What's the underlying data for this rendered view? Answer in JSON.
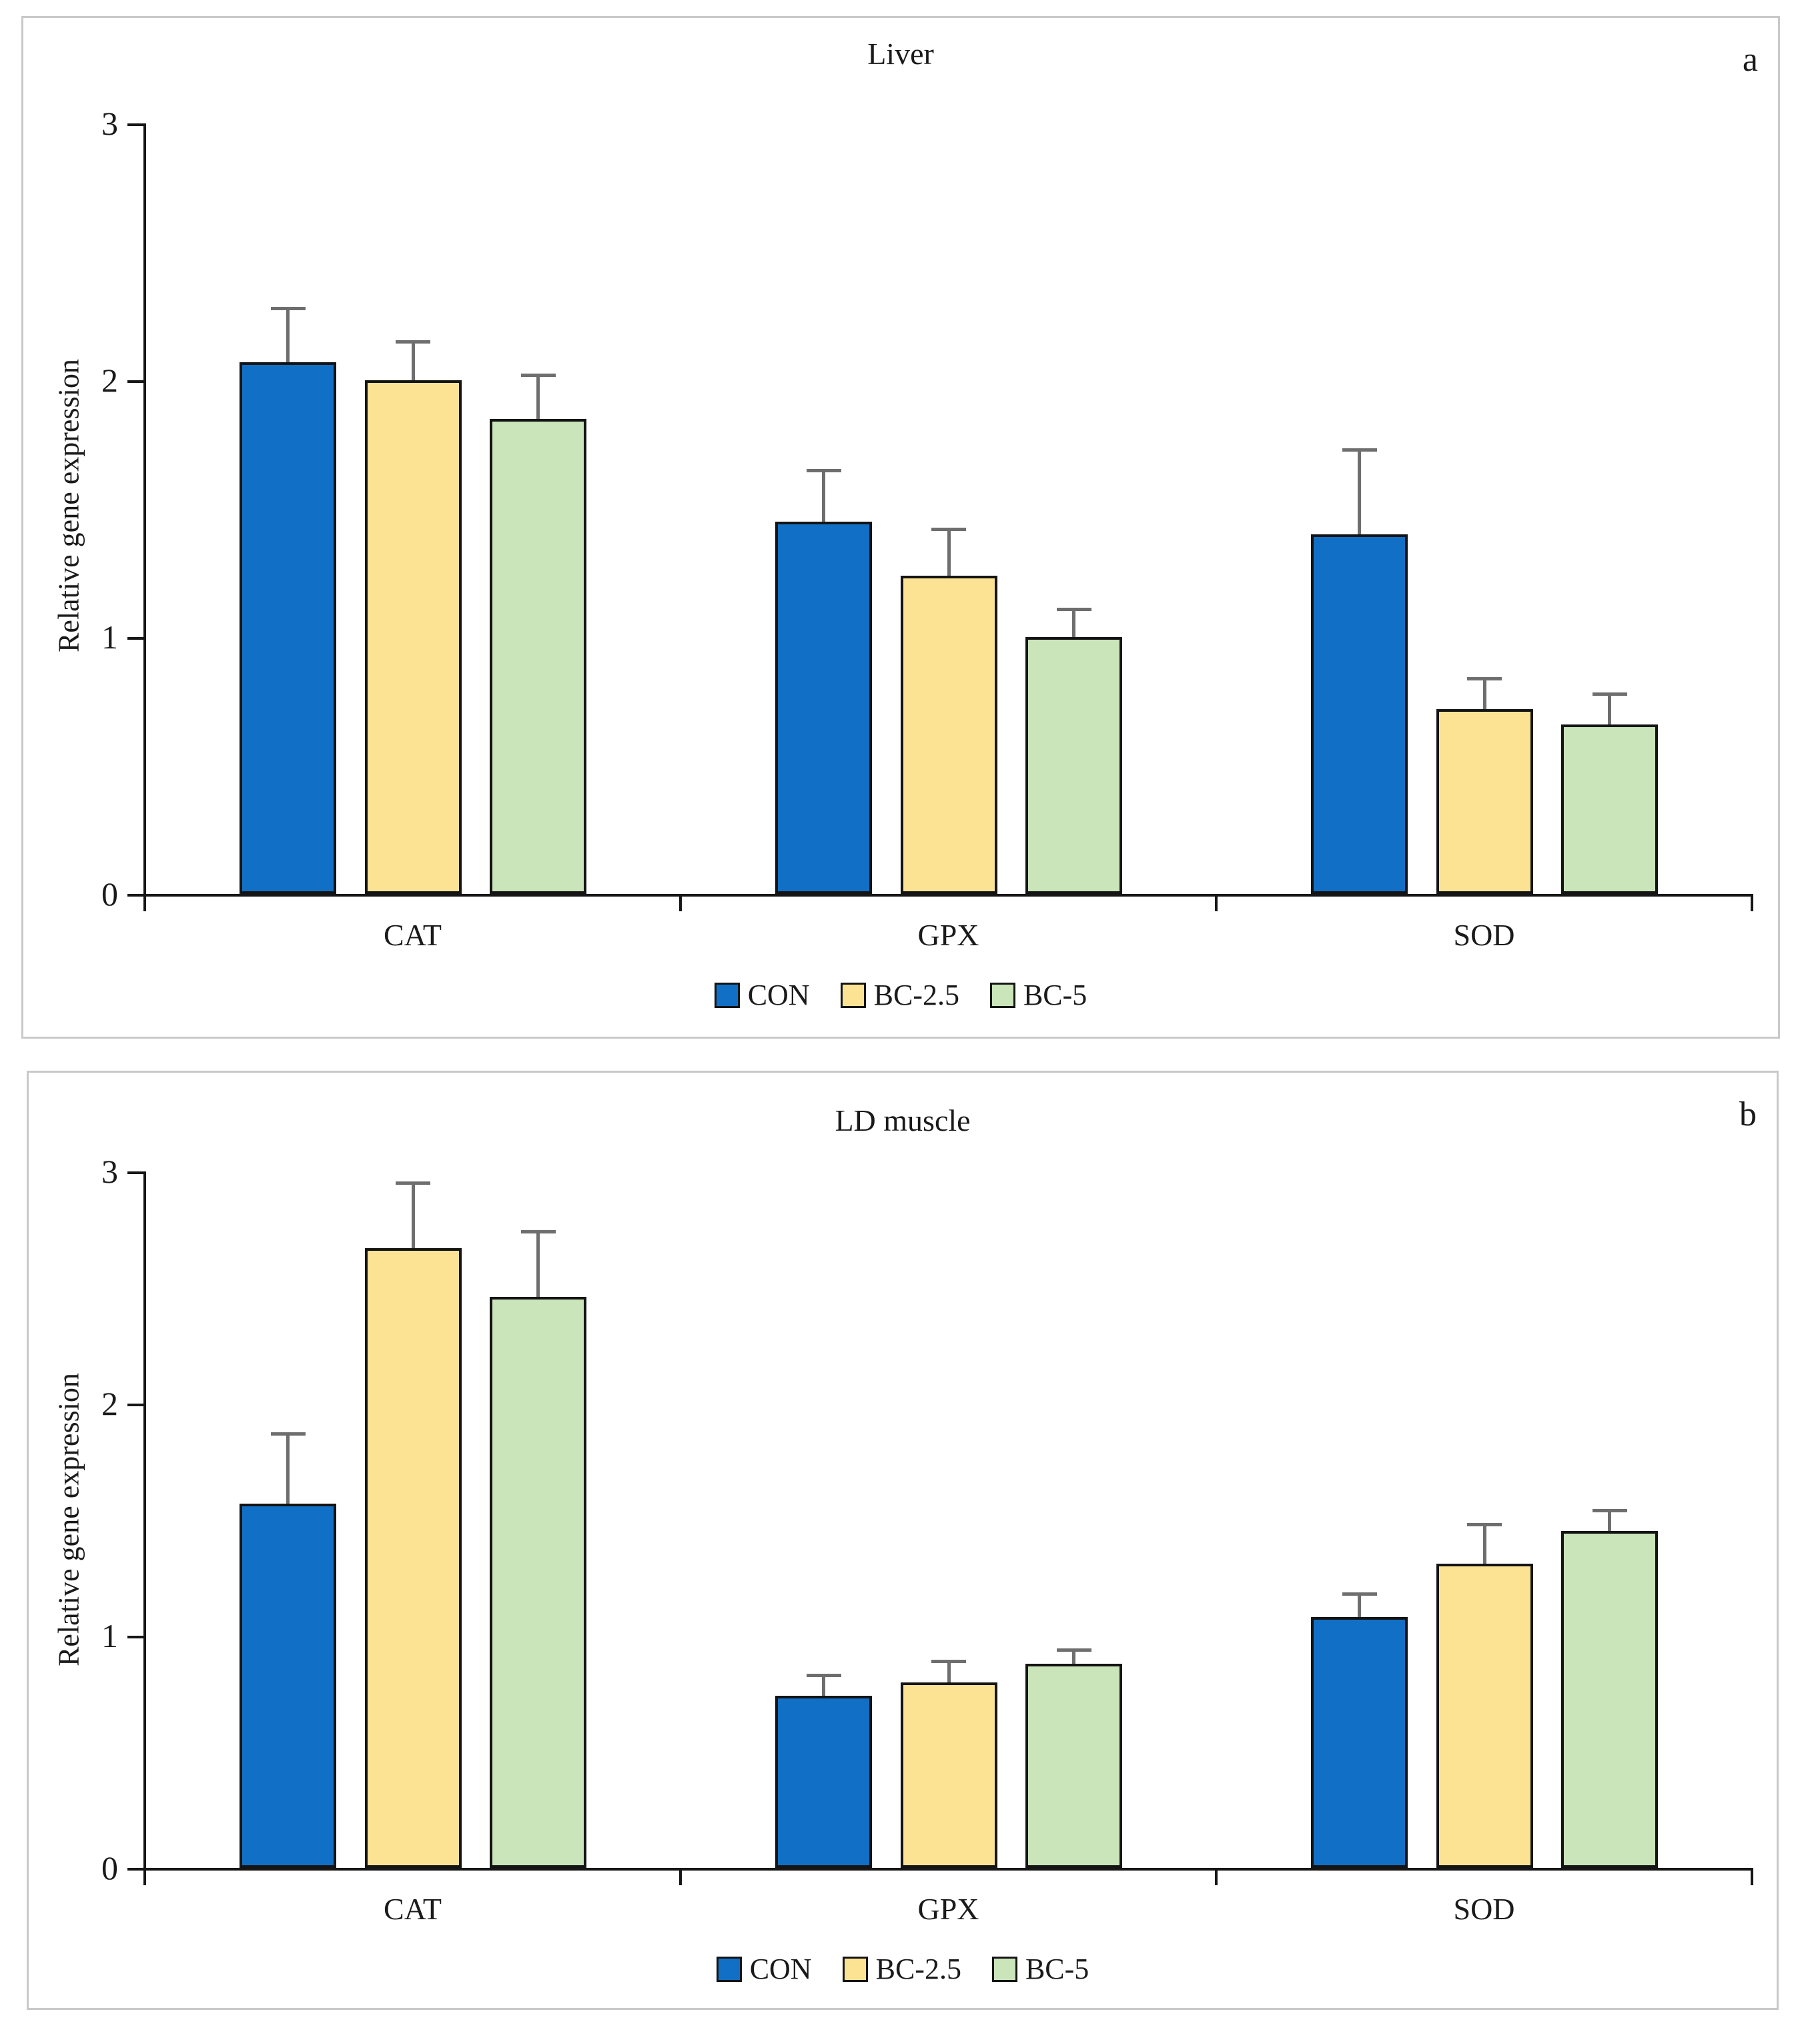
{
  "styles": {
    "series_colors": {
      "CON": "#1170c6",
      "BC-2.5": "#fce394",
      "BC-5": "#cae5ba"
    },
    "bar_border_color": "#141414",
    "error_bar_color": "#6e6e6e",
    "axis_color": "#161616",
    "panel_border_color": "#c9c9c9",
    "text_color": "#1a1a1a"
  },
  "chart_data": [
    {
      "type": "bar",
      "panel_label": "a",
      "title": "Liver",
      "xlabel": "",
      "ylabel": "Relative gene expression",
      "categories": [
        "CAT",
        "GPX",
        "SOD"
      ],
      "ylim": [
        0,
        3
      ],
      "yticks": [
        0,
        1,
        2,
        3
      ],
      "grid": false,
      "error_bars": true,
      "legend_position": "bottom",
      "legend_entries": [
        "CON",
        "BC-2.5",
        "BC-5"
      ],
      "series": [
        {
          "name": "CON",
          "color": "#1170c6",
          "values": [
            2.07,
            1.45,
            1.4
          ],
          "errors": [
            0.21,
            0.2,
            0.33
          ]
        },
        {
          "name": "BC-2.5",
          "color": "#fce394",
          "values": [
            2.0,
            1.24,
            0.72
          ],
          "errors": [
            0.15,
            0.18,
            0.12
          ]
        },
        {
          "name": "BC-5",
          "color": "#cae5ba",
          "values": [
            1.85,
            1.0,
            0.66
          ],
          "errors": [
            0.17,
            0.11,
            0.12
          ]
        }
      ]
    },
    {
      "type": "bar",
      "panel_label": "b",
      "title": "LD muscle",
      "xlabel": "",
      "ylabel": "Relative gene expression",
      "categories": [
        "CAT",
        "GPX",
        "SOD"
      ],
      "ylim": [
        0,
        3
      ],
      "yticks": [
        0,
        1,
        2,
        3
      ],
      "grid": false,
      "error_bars": true,
      "legend_position": "bottom",
      "legend_entries": [
        "CON",
        "BC-2.5",
        "BC-5"
      ],
      "series": [
        {
          "name": "CON",
          "color": "#1170c6",
          "values": [
            1.57,
            0.74,
            1.08
          ],
          "errors": [
            0.3,
            0.09,
            0.1
          ]
        },
        {
          "name": "BC-2.5",
          "color": "#fce394",
          "values": [
            2.67,
            0.8,
            1.31
          ],
          "errors": [
            0.28,
            0.09,
            0.17
          ]
        },
        {
          "name": "BC-5",
          "color": "#cae5ba",
          "values": [
            2.46,
            0.88,
            1.45
          ],
          "errors": [
            0.28,
            0.06,
            0.09
          ]
        }
      ]
    }
  ]
}
